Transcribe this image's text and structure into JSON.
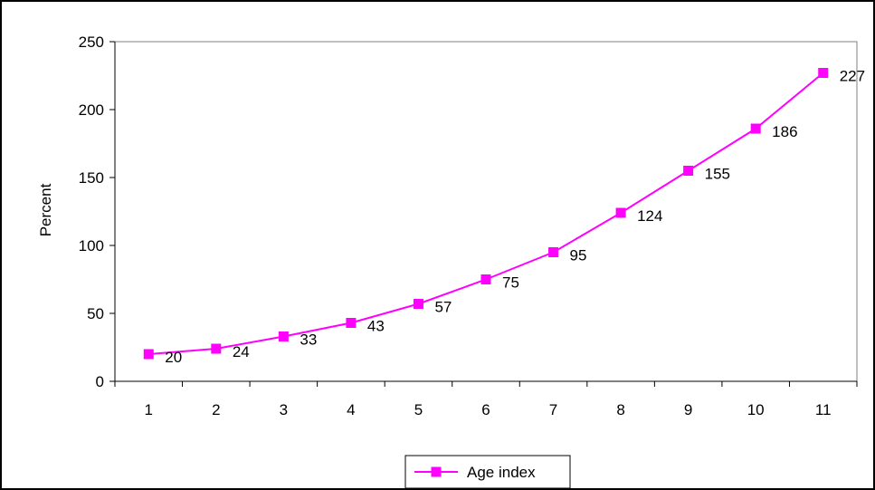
{
  "chart_data": {
    "type": "line",
    "title": "",
    "xlabel": "",
    "ylabel": "Percent",
    "x": [
      1,
      2,
      3,
      4,
      5,
      6,
      7,
      8,
      9,
      10,
      11
    ],
    "x_tick_labels": [
      "1",
      "2",
      "3",
      "4",
      "5",
      "6",
      "7",
      "8",
      "9",
      "10",
      "11"
    ],
    "series": [
      {
        "name": "Age index",
        "values": [
          20,
          24,
          33,
          43,
          57,
          75,
          95,
          124,
          155,
          186,
          227
        ],
        "data_labels": [
          "20",
          "24",
          "33",
          "43",
          "57",
          "75",
          "95",
          "124",
          "155",
          "186",
          "227"
        ],
        "color": "#ff00ff",
        "marker": "square"
      }
    ],
    "ylim": [
      0,
      250
    ],
    "y_ticks": [
      0,
      50,
      100,
      150,
      200,
      250
    ],
    "y_tick_labels": [
      "0",
      "50",
      "100",
      "150",
      "200",
      "250"
    ],
    "grid": false,
    "legend_position": "bottom"
  }
}
